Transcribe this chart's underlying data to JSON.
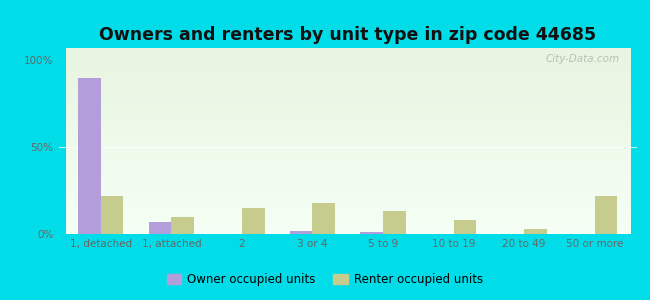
{
  "title": "Owners and renters by unit type in zip code 44685",
  "categories": [
    "1, detached",
    "1, attached",
    "2",
    "3 or 4",
    "5 to 9",
    "10 to 19",
    "20 to 49",
    "50 or more"
  ],
  "owner_values": [
    90,
    7,
    0,
    2,
    1,
    0,
    0,
    0
  ],
  "renter_values": [
    22,
    10,
    15,
    18,
    13,
    8,
    3,
    22
  ],
  "owner_color": "#b39ddb",
  "renter_color": "#c5cc8e",
  "background_outer": "#00dde8",
  "grad_top": "#e8f5e0",
  "grad_bottom": "#f5fff5",
  "yticks": [
    0,
    50,
    100
  ],
  "ytick_labels": [
    "0%",
    "50%",
    "100%"
  ],
  "ylim": [
    0,
    107
  ],
  "bar_width": 0.32,
  "title_fontsize": 12.5,
  "tick_fontsize": 7.5,
  "legend_fontsize": 8.5,
  "owner_label": "Owner occupied units",
  "renter_label": "Renter occupied units",
  "watermark": "City-Data.com"
}
